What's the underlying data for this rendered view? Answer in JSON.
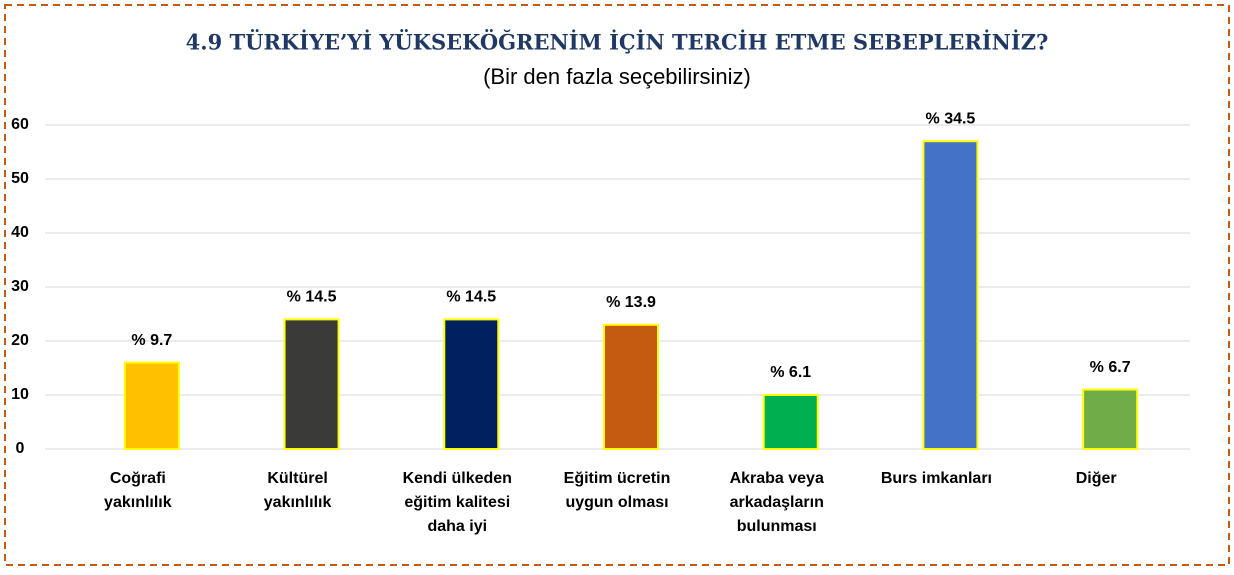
{
  "chart_data": {
    "type": "bar",
    "title": "4.9 TÜRKİYE’Yİ YÜKSEKÖĞRENİM İÇİN TERCİH ETME SEBEPLERİNİZ?",
    "subtitle": "(Bir den fazla seçebilirsiniz)",
    "categories": [
      [
        "Coğrafi",
        "yakınlılık"
      ],
      [
        "Kültürel",
        "yakınlılık"
      ],
      [
        "Kendi ülkeden",
        "eğitim kalitesi",
        "daha iyi"
      ],
      [
        "Eğitim ücretin",
        "uygun olması"
      ],
      [
        "Akraba veya",
        "arkadaşların",
        "bulunması"
      ],
      [
        "Burs imkanları"
      ],
      [
        "Diğer"
      ]
    ],
    "values": [
      16,
      24,
      24,
      23,
      10,
      57,
      11
    ],
    "percent_values": [
      9.7,
      14.5,
      14.5,
      13.9,
      6.1,
      34.5,
      6.7
    ],
    "percent_labels": [
      "% 9.7",
      "% 14.5",
      "% 14.5",
      "% 13.9",
      "% 6.1",
      "% 34.5",
      "% 6.7"
    ],
    "colors": [
      "#ffc000",
      "#3a3a38",
      "#002060",
      "#c55a11",
      "#00b050",
      "#4472c4",
      "#70ad47"
    ],
    "bar_outline": "#ffff00",
    "ylim": [
      0,
      60
    ],
    "yticks": [
      0,
      10,
      20,
      30,
      40,
      50,
      60
    ],
    "grid": true
  }
}
